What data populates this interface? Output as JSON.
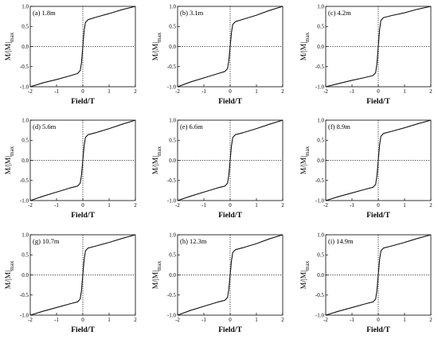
{
  "chart_data": {
    "type": "line",
    "xlabel": "Field/T",
    "ylabel_main": "M/|M|",
    "ylabel_sub": "max",
    "xlim": [
      -2,
      2
    ],
    "ylim": [
      -1.0,
      1.0
    ],
    "x_ticks": [
      -2,
      -1,
      0,
      1,
      2
    ],
    "y_ticks": [
      -1.0,
      -0.5,
      0.0,
      0.5,
      1.0
    ],
    "x_tick_labels": [
      "-2",
      "-1",
      "0",
      "1",
      "2"
    ],
    "y_tick_labels": [
      "-1.0",
      "-0.5",
      "0.0",
      "0.5",
      "1.0"
    ],
    "grid": false,
    "reference_lines": {
      "x": 0,
      "y": 0,
      "style": "dotted"
    },
    "panels": [
      {
        "label": "(a) 1.8m",
        "x": [
          -2,
          -1.5,
          -1,
          -0.5,
          -0.2,
          -0.1,
          -0.05,
          0,
          0.05,
          0.1,
          0.2,
          0.5,
          1,
          1.5,
          2
        ],
        "y": [
          -1.0,
          -0.9,
          -0.82,
          -0.73,
          -0.67,
          -0.6,
          -0.4,
          0.0,
          0.4,
          0.6,
          0.67,
          0.73,
          0.82,
          0.92,
          1.0
        ]
      },
      {
        "label": "(b) 3.1m",
        "x": [
          -2,
          -1.5,
          -1,
          -0.5,
          -0.2,
          -0.1,
          -0.05,
          0,
          0.05,
          0.1,
          0.2,
          0.5,
          1,
          1.5,
          2
        ],
        "y": [
          -1.0,
          -0.88,
          -0.78,
          -0.68,
          -0.62,
          -0.55,
          -0.35,
          0.0,
          0.35,
          0.55,
          0.62,
          0.68,
          0.78,
          0.9,
          1.0
        ]
      },
      {
        "label": "(c) 4.2m",
        "x": [
          -2,
          -1.5,
          -1,
          -0.5,
          -0.2,
          -0.1,
          -0.05,
          0,
          0.05,
          0.1,
          0.2,
          0.5,
          1,
          1.5,
          2
        ],
        "y": [
          -1.0,
          -0.92,
          -0.84,
          -0.77,
          -0.72,
          -0.65,
          -0.42,
          0.0,
          0.42,
          0.65,
          0.72,
          0.77,
          0.84,
          0.93,
          1.0
        ]
      },
      {
        "label": "(d) 5.6m",
        "x": [
          -2,
          -1.5,
          -1,
          -0.5,
          -0.2,
          -0.1,
          -0.05,
          0,
          0.05,
          0.1,
          0.2,
          0.5,
          1,
          1.5,
          2
        ],
        "y": [
          -1.0,
          -0.89,
          -0.79,
          -0.69,
          -0.64,
          -0.57,
          -0.36,
          0.0,
          0.36,
          0.57,
          0.64,
          0.69,
          0.79,
          0.9,
          1.0
        ]
      },
      {
        "label": "(e) 6.6m",
        "x": [
          -2,
          -1.5,
          -1,
          -0.5,
          -0.2,
          -0.1,
          -0.05,
          0,
          0.05,
          0.1,
          0.2,
          0.5,
          1,
          1.5,
          2
        ],
        "y": [
          -1.0,
          -0.89,
          -0.79,
          -0.69,
          -0.64,
          -0.57,
          -0.36,
          0.0,
          0.36,
          0.57,
          0.64,
          0.69,
          0.79,
          0.9,
          1.0
        ]
      },
      {
        "label": "(f) 8.9m",
        "x": [
          -2,
          -1.5,
          -1,
          -0.5,
          -0.2,
          -0.1,
          -0.05,
          0,
          0.05,
          0.1,
          0.2,
          0.5,
          1,
          1.5,
          2
        ],
        "y": [
          -1.0,
          -0.9,
          -0.81,
          -0.72,
          -0.67,
          -0.6,
          -0.38,
          0.0,
          0.38,
          0.6,
          0.67,
          0.72,
          0.81,
          0.91,
          1.0
        ]
      },
      {
        "label": "(g) 10.7m",
        "x": [
          -2,
          -1.5,
          -1,
          -0.5,
          -0.2,
          -0.1,
          -0.05,
          0,
          0.05,
          0.1,
          0.2,
          0.5,
          1,
          1.5,
          2
        ],
        "y": [
          -1.0,
          -0.9,
          -0.81,
          -0.72,
          -0.67,
          -0.6,
          -0.38,
          0.0,
          0.38,
          0.6,
          0.67,
          0.72,
          0.81,
          0.91,
          1.0
        ]
      },
      {
        "label": "(h) 12.3m",
        "x": [
          -2,
          -1.5,
          -1,
          -0.5,
          -0.2,
          -0.1,
          -0.05,
          0,
          0.05,
          0.1,
          0.2,
          0.5,
          1,
          1.5,
          2
        ],
        "y": [
          -1.0,
          -0.88,
          -0.78,
          -0.68,
          -0.63,
          -0.56,
          -0.35,
          0.0,
          0.35,
          0.56,
          0.63,
          0.68,
          0.78,
          0.9,
          1.0
        ]
      },
      {
        "label": "(i) 14.9m",
        "x": [
          -2,
          -1.5,
          -1,
          -0.5,
          -0.2,
          -0.1,
          -0.05,
          0,
          0.05,
          0.1,
          0.2,
          0.5,
          1,
          1.5,
          2
        ],
        "y": [
          -1.0,
          -0.9,
          -0.81,
          -0.72,
          -0.67,
          -0.6,
          -0.38,
          0.0,
          0.38,
          0.6,
          0.67,
          0.72,
          0.81,
          0.91,
          1.0
        ]
      }
    ]
  }
}
